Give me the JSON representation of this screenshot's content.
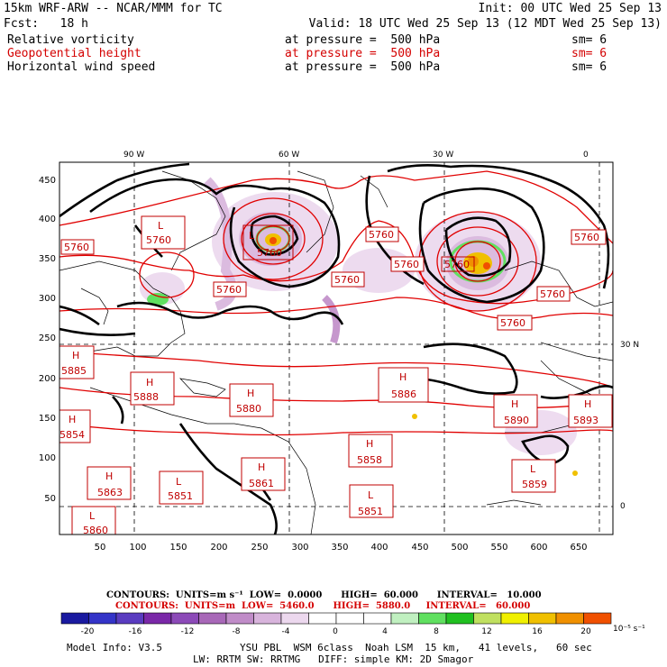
{
  "header": {
    "model": "15km WRF-ARW -- NCAR/MMM for TC",
    "init": "Init: 00 UTC Wed 25 Sep 13",
    "fcst": "Fcst:   18 h",
    "valid": "Valid: 18 UTC Wed 25 Sep 13 (12 MDT Wed 25 Sep 13)",
    "fields": [
      {
        "name": "Relative vorticity",
        "level": "at pressure =  500 hPa",
        "sm": "sm= 6",
        "color": "#000000"
      },
      {
        "name": "Geopotential height",
        "level": "at pressure =  500 hPa",
        "sm": "sm= 6",
        "color": "#d40000"
      },
      {
        "name": "Horizontal wind speed",
        "level": "at pressure =  500 hPa",
        "sm": "sm= 6",
        "color": "#000000"
      }
    ]
  },
  "map": {
    "lon_labels": [
      "90 W",
      "60 W",
      "30 W",
      "0"
    ],
    "lat_labels": [
      "30 N",
      "0"
    ],
    "x_ticks": [
      "50",
      "100",
      "150",
      "200",
      "250",
      "300",
      "350",
      "400",
      "450",
      "500",
      "550",
      "600",
      "650"
    ],
    "y_ticks": [
      "450",
      "400",
      "350",
      "300",
      "250",
      "200",
      "150",
      "100",
      "50"
    ],
    "height_boxes": [
      {
        "type": "H",
        "value": "5885"
      },
      {
        "type": "L",
        "value": "5760"
      },
      {
        "type": "L",
        "value": "5760"
      },
      {
        "type": "H",
        "value": "5888"
      },
      {
        "type": "H",
        "value": "5880"
      },
      {
        "type": "H",
        "value": "5854"
      },
      {
        "type": "H",
        "value": "5863"
      },
      {
        "type": "L",
        "value": "5851"
      },
      {
        "type": "H",
        "value": "5861"
      },
      {
        "type": "L",
        "value": "5860"
      },
      {
        "type": "H",
        "value": "5886"
      },
      {
        "type": "H",
        "value": "5858"
      },
      {
        "type": "L",
        "value": "5851"
      },
      {
        "type": "H",
        "value": "5890"
      },
      {
        "type": "H",
        "value": "5893"
      },
      {
        "type": "L",
        "value": "5859"
      }
    ],
    "contour_labels": [
      "5760",
      "5760",
      "5760",
      "5760",
      "5760",
      "5760",
      "5760",
      "5760",
      "5760"
    ]
  },
  "contour_info": {
    "black": "CONTOURS:  UNITS=m s⁻¹  LOW=  0.0000      HIGH=  60.000      INTERVAL=   10.000",
    "red": "CONTOURS:  UNITS=m  LOW=  5460.0      HIGH=  5880.0     INTERVAL=   60.000"
  },
  "colorbar": {
    "labels": [
      "-20",
      "-16",
      "-12",
      "-8",
      "-4",
      "0",
      "4",
      "8",
      "12",
      "16",
      "20"
    ],
    "unit": "10⁻⁵ s⁻¹",
    "colors": [
      "#1a1aa0",
      "#3434c8",
      "#5a3cc0",
      "#7a28a8",
      "#8c4ab8",
      "#a868b8",
      "#c08cc8",
      "#d8b4dc",
      "#ecd8ee",
      "#ffffff",
      "#ffffff",
      "#ffffff",
      "#c0f0c0",
      "#60e060",
      "#20c020",
      "#c0e060",
      "#f0f000",
      "#f0c000",
      "#f09000",
      "#f05000"
    ]
  },
  "model_info": {
    "line1_left": "Model Info: V3.5",
    "line1_right": "YSU PBL  WSM 6class  Noah LSM  15 km,   41 levels,   60 sec",
    "line2": "LW: RRTM SW: RRTMG   DIFF: simple KM: 2D Smagor"
  }
}
